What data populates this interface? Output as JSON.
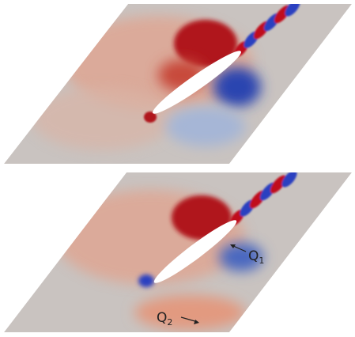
{
  "labels": [
    {
      "text": "Q",
      "subscript": "1"
    },
    {
      "text": "Q",
      "subscript": "2"
    }
  ]
}
